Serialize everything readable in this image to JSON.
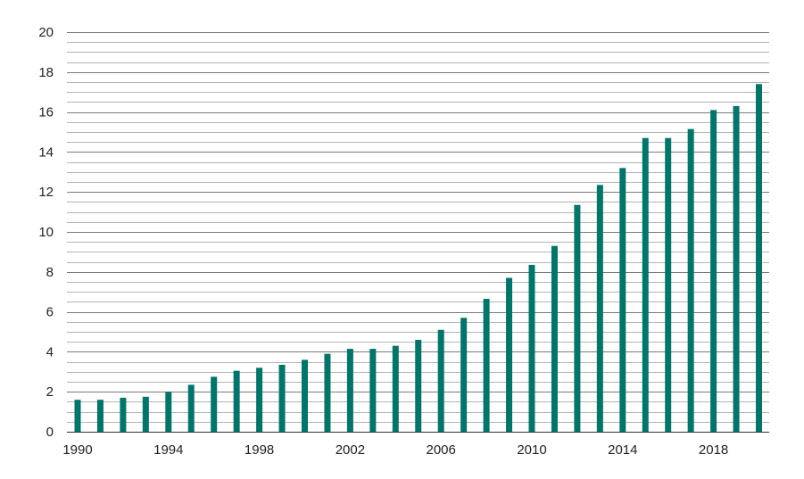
{
  "chart_data": {
    "type": "bar",
    "title": "",
    "xlabel": "",
    "ylabel": "",
    "x": [
      1990,
      1991,
      1992,
      1993,
      1994,
      1995,
      1996,
      1997,
      1998,
      1999,
      2000,
      2001,
      2002,
      2003,
      2004,
      2005,
      2006,
      2007,
      2008,
      2009,
      2010,
      2011,
      2012,
      2013,
      2014,
      2015,
      2016,
      2017,
      2018,
      2019,
      2020
    ],
    "values": [
      1.6,
      1.6,
      1.7,
      1.75,
      2.0,
      2.35,
      2.75,
      3.05,
      3.2,
      3.35,
      3.6,
      3.9,
      4.15,
      4.15,
      4.3,
      4.6,
      5.1,
      5.7,
      6.65,
      7.7,
      8.35,
      9.3,
      11.35,
      12.35,
      13.2,
      14.7,
      14.7,
      15.15,
      16.1,
      16.3,
      17.4
    ],
    "ylim": [
      0,
      20
    ],
    "yticks": [
      0,
      2,
      4,
      6,
      8,
      10,
      12,
      14,
      16,
      18,
      20
    ],
    "xtick_labels": [
      "1990",
      "1994",
      "1998",
      "2002",
      "2006",
      "2010",
      "2014",
      "2018"
    ],
    "minor_grid_step": 0.5,
    "grid": true,
    "legend": "none",
    "colors": {
      "bar": "#00756a",
      "grid_major": "#7a7a7a",
      "grid_minor": "#b5b5b5",
      "axis": "#333333"
    }
  }
}
